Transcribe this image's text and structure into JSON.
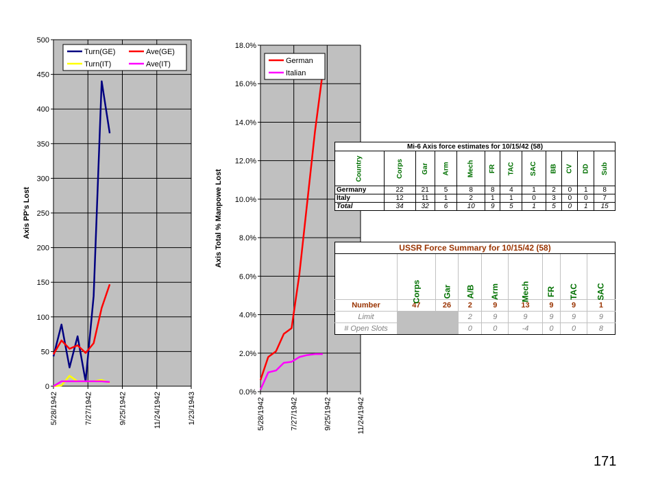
{
  "chart_data": [
    {
      "type": "line",
      "title": "",
      "xlabel": "",
      "ylabel": "Axis PP's Lost",
      "ylim": [
        0,
        500
      ],
      "yticks": [
        "0",
        "50",
        "100",
        "150",
        "200",
        "250",
        "300",
        "350",
        "400",
        "450",
        "500"
      ],
      "xlim": [
        "5/28/1942",
        "1/23/1943"
      ],
      "xticks": [
        "5/28/1942",
        "7/27/1942",
        "9/25/1942",
        "11/24/1942",
        "1/23/1943"
      ],
      "grid": true,
      "legend": "top",
      "series": [
        {
          "name": "Turn(GE)",
          "color": "#000080",
          "x": [
            "5/28/1942",
            "6/11/1942",
            "6/25/1942",
            "7/9/1942",
            "7/23/1942",
            "8/6/1942",
            "8/20/1942",
            "9/3/1942",
            "9/17/1942",
            "10/1/1942"
          ],
          "values": [
            43,
            89,
            27,
            72,
            7,
            130,
            440,
            365,
            null,
            null
          ]
        },
        {
          "name": "Ave(GE)",
          "color": "#ff0000",
          "x": [
            "5/28/1942",
            "6/11/1942",
            "6/25/1942",
            "7/9/1942",
            "7/23/1942",
            "8/6/1942",
            "8/20/1942",
            "9/3/1942",
            "9/17/1942",
            "10/1/1942"
          ],
          "values": [
            46,
            66,
            54,
            59,
            48,
            62,
            113,
            147,
            null,
            null
          ]
        },
        {
          "name": "Turn(IT)",
          "color": "#ffff00",
          "x": [
            "5/28/1942",
            "6/11/1942",
            "6/25/1942",
            "7/9/1942",
            "7/23/1942",
            "8/6/1942",
            "8/20/1942",
            "9/3/1942"
          ],
          "values": [
            0,
            1,
            15,
            7,
            7,
            7,
            9,
            5
          ]
        },
        {
          "name": "Ave(IT)",
          "color": "#ff00ff",
          "x": [
            "5/28/1942",
            "6/11/1942",
            "6/25/1942",
            "7/9/1942",
            "7/23/1942",
            "8/6/1942",
            "8/20/1942",
            "9/3/1942"
          ],
          "values": [
            0,
            7,
            7,
            7,
            7,
            7,
            7,
            6
          ]
        }
      ]
    },
    {
      "type": "line",
      "title": "",
      "xlabel": "",
      "ylabel": "Axis Total % Manpowe Lost",
      "ylim": [
        0,
        18
      ],
      "yticks": [
        "0.0%",
        "2.0%",
        "4.0%",
        "6.0%",
        "8.0%",
        "10.0%",
        "12.0%",
        "14.0%",
        "16.0%",
        "18.0%"
      ],
      "xlim": [
        "5/28/1942",
        "11/24/1942"
      ],
      "xticks": [
        "5/28/1942",
        "7/27/1942",
        "9/25/1942",
        "11/24/1942"
      ],
      "grid": true,
      "legend": "top-left",
      "series": [
        {
          "name": "German",
          "color": "#ff0000",
          "x": [
            "5/28/1942",
            "6/11/1942",
            "6/25/1942",
            "7/9/1942",
            "7/23/1942",
            "8/6/1942",
            "8/20/1942",
            "9/3/1942",
            "9/17/1942",
            "10/1/1942",
            "10/15/1942"
          ],
          "values": [
            0.6,
            1.8,
            2.1,
            3.0,
            3.3,
            6.1,
            9.8,
            13.5,
            16.6,
            null,
            null
          ]
        },
        {
          "name": "Italian",
          "color": "#ff00ff",
          "x": [
            "5/28/1942",
            "6/11/1942",
            "6/25/1942",
            "7/9/1942",
            "7/23/1942",
            "8/6/1942",
            "8/20/1942",
            "9/3/1942",
            "9/17/1942"
          ],
          "values": [
            0.1,
            1.0,
            1.1,
            1.5,
            1.55,
            1.8,
            1.9,
            1.95,
            1.95
          ]
        }
      ]
    }
  ],
  "mi6": {
    "title": "Mi-6 Axis force estimates for 10/15/42 (58)",
    "headers": [
      "Country",
      "Corps",
      "Gar",
      "Arm",
      "Mech",
      "FR",
      "TAC",
      "SAC",
      "BB",
      "CV",
      "DD",
      "Sub"
    ],
    "rows": [
      [
        "Germany",
        "22",
        "21",
        "5",
        "8",
        "8",
        "4",
        "1",
        "2",
        "0",
        "1",
        "8"
      ],
      [
        "Italy",
        "12",
        "11",
        "1",
        "2",
        "1",
        "1",
        "0",
        "3",
        "0",
        "0",
        "7"
      ],
      [
        "Total",
        "34",
        "32",
        "6",
        "10",
        "9",
        "5",
        "1",
        "5",
        "0",
        "1",
        "15"
      ]
    ]
  },
  "ussr": {
    "title": "USSR Force Summary for 10/15/42 (58)",
    "headers": [
      "Corps",
      "Gar",
      "A/B",
      "Arm",
      "Mech",
      "FR",
      "TAC",
      "SAC"
    ],
    "rows": [
      [
        "Number",
        "47",
        "26",
        "2",
        "9",
        "13",
        "9",
        "9",
        "1"
      ],
      [
        "Limit",
        "",
        "",
        "2",
        "9",
        "9",
        "9",
        "9",
        "9"
      ],
      [
        "# Open Slots",
        "",
        "",
        "0",
        "0",
        "-4",
        "0",
        "0",
        "8"
      ]
    ]
  },
  "page_number": "171"
}
